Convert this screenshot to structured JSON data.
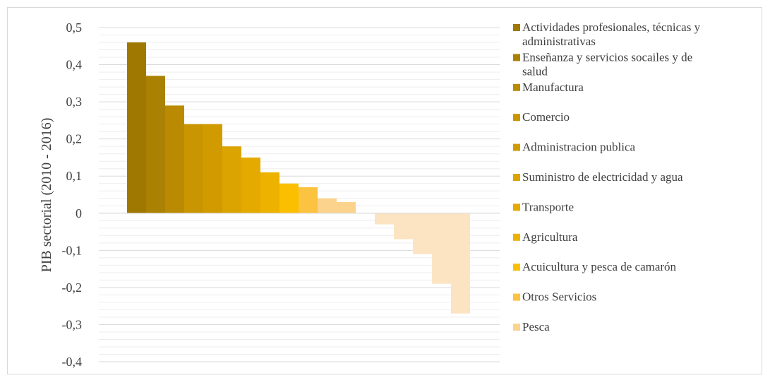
{
  "chart_data": {
    "type": "bar",
    "title": "",
    "xlabel": "",
    "ylabel": "PIB sectorial (2010 - 2016)",
    "ylim": [
      -0.4,
      0.5
    ],
    "ytick_values": [
      0.5,
      0.4,
      0.3,
      0.2,
      0.1,
      0,
      -0.1,
      -0.2,
      -0.3,
      -0.4
    ],
    "ytick_labels": [
      "0,5",
      "0,4",
      "0,3",
      "0,2",
      "0,1",
      "0",
      "-0,1",
      "-0,2",
      "-0,3",
      "-0,4"
    ],
    "grid": true,
    "legend_position": "right",
    "legend": [
      {
        "label": "Actividades profesionales, técnicas y administrativas",
        "color": "#9E7800"
      },
      {
        "label": "Enseñanza y servicios socailes y de salud",
        "color": "#AA8103"
      },
      {
        "label": "Manufactura",
        "color": "#BA8A02"
      },
      {
        "label": "Comercio",
        "color": "#C99500"
      },
      {
        "label": "Administracion publica",
        "color": "#D19B00"
      },
      {
        "label": "Suministro de electricidad y agua",
        "color": "#DBA400"
      },
      {
        "label": "Transporte",
        "color": "#E5AA00"
      },
      {
        "label": "Agricultura",
        "color": "#EDB200"
      },
      {
        "label": "Acuicultura y pesca de camarón",
        "color": "#FBBF00"
      },
      {
        "label": "Otros Servicios",
        "color": "#FCC340"
      },
      {
        "label": "Pesca",
        "color": "#FCD38D"
      }
    ],
    "values": [
      0.46,
      0.37,
      0.29,
      0.24,
      0.24,
      0.18,
      0.15,
      0.11,
      0.08,
      0.07,
      0.04,
      0.03,
      null,
      -0.03,
      -0.07,
      -0.11,
      -0.19,
      -0.27
    ],
    "bar_colors": [
      "#9E7800",
      "#AA8103",
      "#BA8A02",
      "#C99500",
      "#D19B00",
      "#DBA400",
      "#E5AA00",
      "#EDB200",
      "#FBBF00",
      "#FCC340",
      "#FCD38D",
      "#FCD38D",
      "#FCE4C2",
      "#FCE4C2",
      "#FCE4C2",
      "#FCE4C2",
      "#FCE4C2",
      "#FCE4C2"
    ]
  }
}
